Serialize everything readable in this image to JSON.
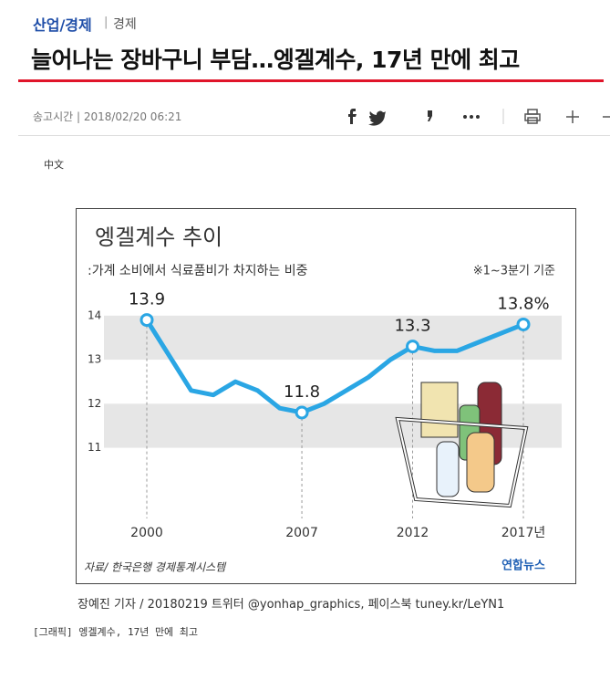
{
  "header": {
    "section": "산업/경제",
    "subsection": "경제",
    "title": "늘어나는 장바구니 부담…엥겔계수, 17년 만에 최고",
    "meta": "송고시간 | 2018/02/20 06:21",
    "language": "中文"
  },
  "chart_data": {
    "type": "line",
    "title": "엥겔계수 추이",
    "subtitle": ":가계 소비에서 식료품비가 차지하는 비중",
    "note": "※1~3분기 기준",
    "source": "자료/ 한국은행 경제통계시스템",
    "logo": "연합뉴스",
    "categories": [
      "2000",
      null,
      null,
      null,
      null,
      null,
      null,
      "2007",
      null,
      null,
      null,
      null,
      "2012",
      null,
      null,
      null,
      null,
      "2017년"
    ],
    "values": [
      13.9,
      13.1,
      12.3,
      12.2,
      12.5,
      12.3,
      11.9,
      11.8,
      12.0,
      12.3,
      12.6,
      13.0,
      13.3,
      13.2,
      13.2,
      13.4,
      13.6,
      13.8
    ],
    "value_labels": [
      "13.9",
      null,
      null,
      null,
      null,
      null,
      null,
      "11.8",
      null,
      null,
      null,
      null,
      "13.3",
      null,
      null,
      null,
      null,
      "13.8%"
    ],
    "color": "#2aa6e4",
    "ylim": [
      9.5,
      14.7
    ],
    "yticks": [
      11,
      12,
      13,
      14
    ]
  },
  "credit": "장예진 기자 / 20180219 트위터 @yonhap_graphics, 페이스북 tuney.kr/LeYN1",
  "caption": "[그래픽] 엥겔계수, 17년 만에 최고"
}
